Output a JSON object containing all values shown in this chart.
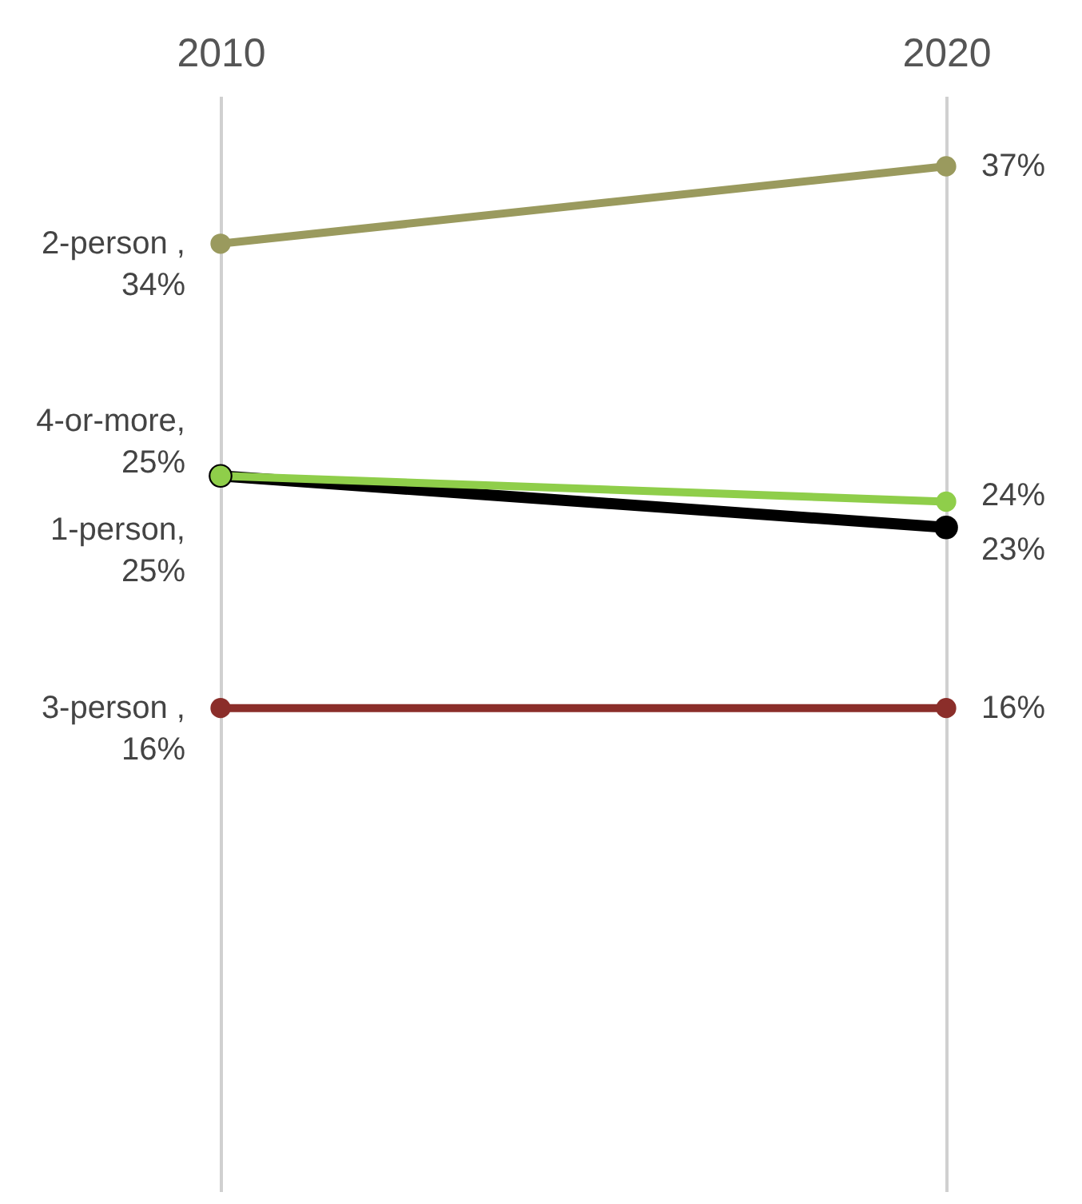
{
  "chart_data": {
    "type": "line",
    "categories": [
      "2010",
      "2020"
    ],
    "grid": "x",
    "legend": false,
    "marker": "circle",
    "series": [
      {
        "name": "2-person ,",
        "color": "#9a9a5e",
        "values": [
          34,
          37
        ],
        "value_labels": [
          "34%",
          "37%"
        ]
      },
      {
        "name": "1-person,",
        "color": "#000000",
        "values": [
          25,
          23
        ],
        "value_labels": [
          "25%",
          "23%"
        ]
      },
      {
        "name": "4-or-more,",
        "color": "#8fce4a",
        "values": [
          25,
          24
        ],
        "value_labels": [
          "25%",
          "24%"
        ]
      },
      {
        "name": "3-person ,",
        "color": "#8b2e2a",
        "values": [
          16,
          16
        ],
        "value_labels": [
          "16%",
          "16%"
        ]
      }
    ]
  }
}
